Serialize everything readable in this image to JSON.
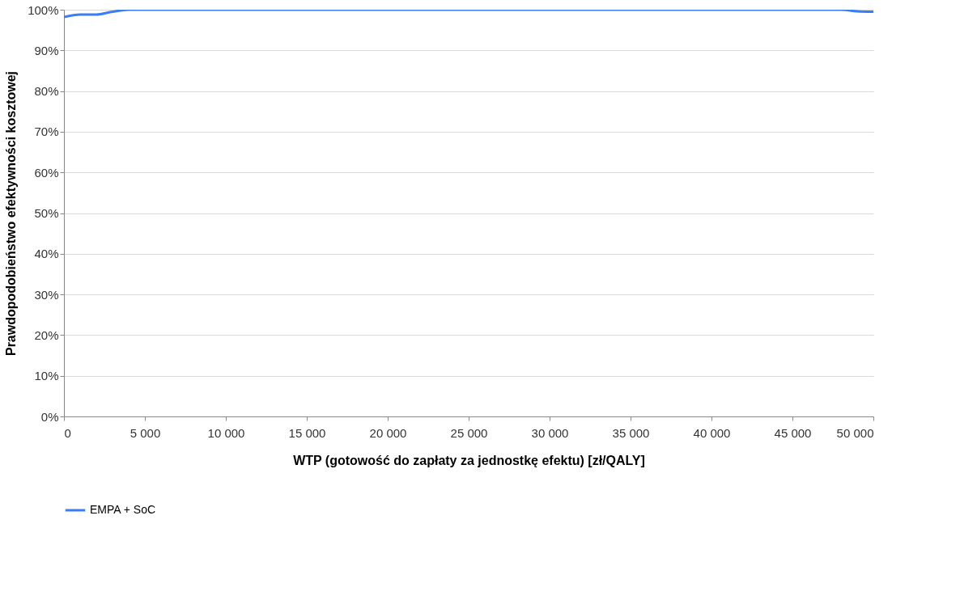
{
  "chart_data": {
    "type": "line",
    "xlabel": "WTP (gotowość do zapłaty za jednostkę efektu) [zł/QALY]",
    "ylabel": "Prawdopodobieństwo efektywności kosztowej",
    "x": [
      0,
      1000,
      2000,
      3000,
      4000,
      5000,
      10000,
      20000,
      30000,
      40000,
      47000,
      48000,
      49000,
      50000
    ],
    "series": [
      {
        "name": "EMPA + SoC",
        "color": "#3a7df5",
        "values": [
          98.2,
          98.8,
          98.8,
          99.5,
          100,
          100,
          100,
          100,
          100,
          100,
          100,
          100,
          99.6,
          99.5
        ]
      }
    ],
    "xlim": [
      0,
      50000
    ],
    "xticks": [
      {
        "value": 0,
        "label": "0"
      },
      {
        "value": 5000,
        "label": "5 000"
      },
      {
        "value": 10000,
        "label": "10 000"
      },
      {
        "value": 15000,
        "label": "15 000"
      },
      {
        "value": 20000,
        "label": "20 000"
      },
      {
        "value": 25000,
        "label": "25 000"
      },
      {
        "value": 30000,
        "label": "30 000"
      },
      {
        "value": 35000,
        "label": "35 000"
      },
      {
        "value": 40000,
        "label": "40 000"
      },
      {
        "value": 45000,
        "label": "45 000"
      },
      {
        "value": 50000,
        "label": "50 000"
      }
    ],
    "ylim": [
      0,
      100
    ],
    "yticks": [
      {
        "value": 0,
        "label": "0%"
      },
      {
        "value": 10,
        "label": "10%"
      },
      {
        "value": 20,
        "label": "20%"
      },
      {
        "value": 30,
        "label": "30%"
      },
      {
        "value": 40,
        "label": "40%"
      },
      {
        "value": 50,
        "label": "50%"
      },
      {
        "value": 60,
        "label": "60%"
      },
      {
        "value": 70,
        "label": "70%"
      },
      {
        "value": 80,
        "label": "80%"
      },
      {
        "value": 90,
        "label": "90%"
      },
      {
        "value": 100,
        "label": "100%"
      }
    ],
    "grid": "y",
    "legend": "bottom",
    "marker": "none",
    "line_style": "solid"
  }
}
